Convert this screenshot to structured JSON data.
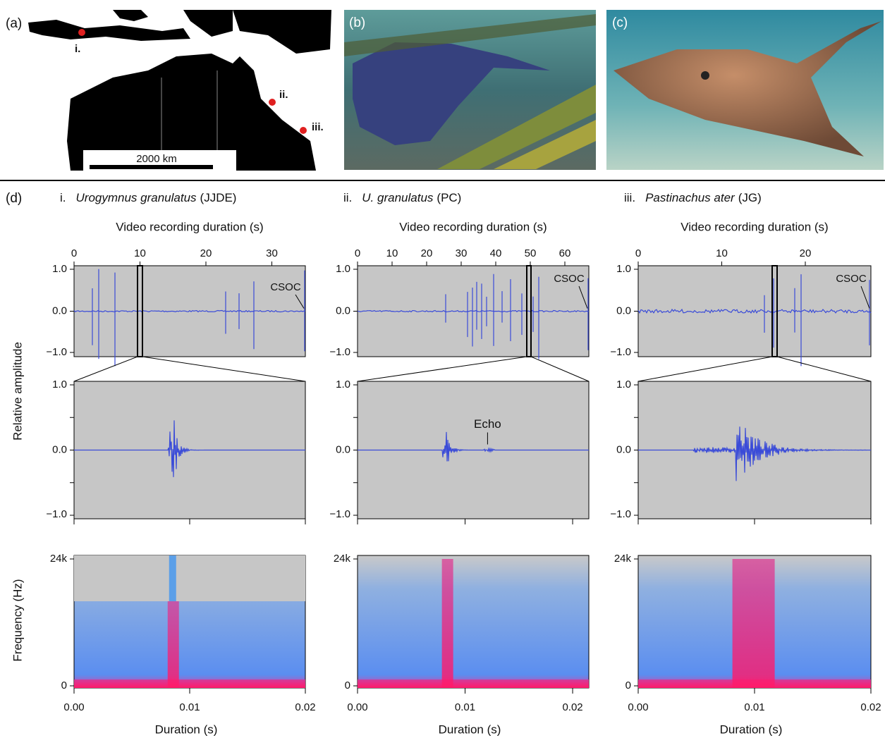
{
  "panels": {
    "a": {
      "label": "(a)",
      "sites": [
        "i.",
        "ii.",
        "iii."
      ],
      "scale_bar": "2000 km"
    },
    "b": {
      "label": "(b)"
    },
    "c": {
      "label": "(c)"
    },
    "d": {
      "label": "(d)",
      "amplitude_axis_title": "Relative  amplitude",
      "frequency_axis_title": "Frequency  (Hz)",
      "columns": [
        {
          "numeral": "i.",
          "species": "Urogymnus granulatus",
          "observer": "(JJDE)",
          "top_axis_title": "Video recording duration (s)",
          "top_ticks": [
            "0",
            "10",
            "20",
            "30"
          ],
          "annotation": "CSOC",
          "amplitude_ticks": [
            "1.0",
            "0.0",
            "−1.0"
          ],
          "frequency_ticks": [
            "24k",
            "0"
          ],
          "duration_ticks": [
            "0.00",
            "0.01",
            "0.02"
          ],
          "duration_axis_title": "Duration (s)"
        },
        {
          "numeral": "ii.",
          "species": "U. granulatus",
          "observer": "(PC)",
          "top_axis_title": "Video recording duration (s)",
          "top_ticks": [
            "0",
            "10",
            "20",
            "30",
            "40",
            "50",
            "60"
          ],
          "annotation": "CSOC",
          "echo_label": "Echo",
          "amplitude_ticks": [
            "1.0",
            "0.0",
            "−1.0"
          ],
          "frequency_ticks": [
            "24k",
            "0"
          ],
          "duration_ticks": [
            "0.00",
            "0.01",
            "0.02"
          ],
          "duration_axis_title": "Duration (s)"
        },
        {
          "numeral": "iii.",
          "species": "Pastinachus ater",
          "observer": "(JG)",
          "top_axis_title": "Video recording duration (s)",
          "top_ticks": [
            "0",
            "10",
            "20"
          ],
          "annotation": "CSOC",
          "amplitude_ticks": [
            "1.0",
            "0.0",
            "−1.0"
          ],
          "frequency_ticks": [
            "24k",
            "0"
          ],
          "duration_ticks": [
            "0.00",
            "0.01",
            "0.02"
          ],
          "duration_axis_title": "Duration (s)"
        }
      ]
    }
  }
}
